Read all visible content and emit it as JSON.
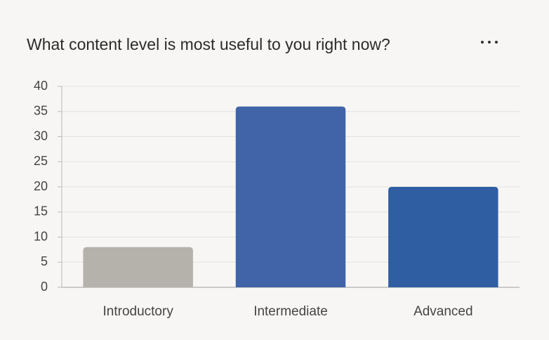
{
  "chart_data": {
    "type": "bar",
    "title": "What content level is most useful to you right now?",
    "categories": [
      "Introductory",
      "Intermediate",
      "Advanced"
    ],
    "values": [
      8,
      36,
      20
    ],
    "colors": [
      "#b5b2ab",
      "#4164a9",
      "#2f5ea3"
    ],
    "ylim": [
      0,
      40
    ],
    "yticks": [
      0,
      5,
      10,
      15,
      20,
      25,
      30,
      35,
      40
    ],
    "grid": true
  }
}
